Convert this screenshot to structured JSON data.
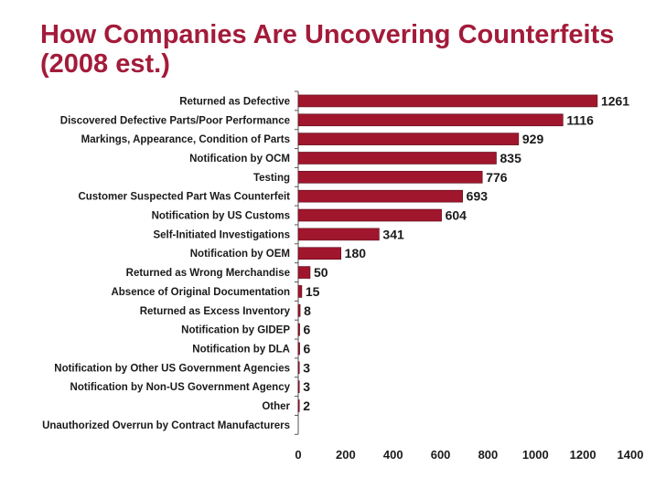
{
  "chart_data": {
    "type": "bar",
    "orientation": "horizontal",
    "title_line1": "How Companies Are Uncovering Counterfeits",
    "title_line2": "(2008 est.)",
    "xlabel": "",
    "ylabel": "",
    "xlim": [
      0,
      1400
    ],
    "xticks": [
      0,
      200,
      400,
      600,
      800,
      1000,
      1200,
      1400
    ],
    "grid": false,
    "legend": "none",
    "bar_color": "#a0162d",
    "title_color": "#a31b3a",
    "categories": [
      "Returned as Defective",
      "Discovered Defective Parts/Poor Performance",
      "Markings, Appearance, Condition of Parts",
      "Notification by OCM",
      "Testing",
      "Customer Suspected Part Was Counterfeit",
      "Notification by US Customs",
      "Self-Initiated Investigations",
      "Notification by OEM",
      "Returned as Wrong Merchandise",
      "Absence of Original Documentation",
      "Returned as Excess Inventory",
      "Notification by GIDEP",
      "Notification by DLA",
      "Notification by Other US Government Agencies",
      "Notification by Non-US Government Agency",
      "Other",
      "Unauthorized Overrun by Contract Manufacturers"
    ],
    "values": [
      1261,
      1116,
      929,
      835,
      776,
      693,
      604,
      341,
      180,
      50,
      15,
      8,
      6,
      6,
      3,
      3,
      2,
      null
    ],
    "value_labels": [
      "1261",
      "1116",
      "929",
      "835",
      "776",
      "693",
      "604",
      "341",
      "180",
      "50",
      "15",
      "8",
      "6",
      "6",
      "3",
      "3",
      "2",
      ""
    ]
  }
}
